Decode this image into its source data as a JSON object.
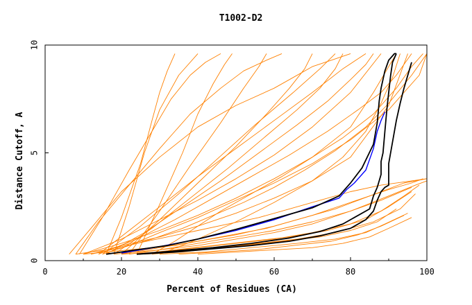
{
  "chart_data": {
    "type": "line",
    "title": "T1002-D2",
    "xlabel": "Percent of Residues (CA)",
    "ylabel": "Distance Cutoff, A",
    "xlim": [
      0,
      100
    ],
    "ylim": [
      0,
      10
    ],
    "xticks": [
      0,
      20,
      40,
      60,
      80,
      100
    ],
    "yticks": [
      0,
      5,
      10
    ],
    "clip_top": 9.6,
    "colors": {
      "models": "#ff8000",
      "highlight": "#0000ff",
      "reference": "#000000"
    },
    "series": [
      {
        "name": "model-01",
        "color": "#ff8000",
        "x": [
          6.3,
          12,
          20,
          30,
          40,
          50,
          60,
          65,
          70,
          75,
          80
        ],
        "y": [
          0.3,
          1.5,
          3.2,
          4.8,
          6.2,
          7.2,
          8.0,
          8.5,
          9.0,
          9.3,
          9.6
        ]
      },
      {
        "name": "model-02",
        "color": "#ff8000",
        "x": [
          8,
          14,
          22,
          30,
          38,
          46,
          52,
          58,
          62
        ],
        "y": [
          0.3,
          1.8,
          3.5,
          5.2,
          6.8,
          8.0,
          8.8,
          9.3,
          9.6
        ]
      },
      {
        "name": "model-03",
        "color": "#ff8000",
        "x": [
          9,
          15,
          22,
          28,
          33,
          38,
          42,
          46
        ],
        "y": [
          0.3,
          2.0,
          4.2,
          6.0,
          7.5,
          8.6,
          9.2,
          9.6
        ]
      },
      {
        "name": "model-04",
        "color": "#ff8000",
        "x": [
          10,
          20,
          30,
          40,
          50,
          60,
          70,
          80,
          88
        ],
        "y": [
          0.3,
          1.0,
          1.9,
          2.8,
          3.8,
          4.9,
          6.2,
          7.8,
          9.6
        ]
      },
      {
        "name": "model-05",
        "color": "#ff8000",
        "x": [
          10,
          20,
          30,
          40,
          50,
          60,
          70,
          80,
          86,
          92
        ],
        "y": [
          0.3,
          0.8,
          1.4,
          2.1,
          2.9,
          3.8,
          4.8,
          6.2,
          7.8,
          9.6
        ]
      },
      {
        "name": "model-06",
        "color": "#ff8000",
        "x": [
          12,
          20,
          30,
          40,
          50,
          60,
          70,
          80,
          90,
          95
        ],
        "y": [
          0.3,
          0.7,
          1.1,
          1.6,
          2.2,
          2.9,
          3.7,
          4.8,
          7.2,
          9.6
        ]
      },
      {
        "name": "model-07",
        "color": "#ff8000",
        "x": [
          14,
          22,
          30,
          40,
          50,
          60,
          70,
          78,
          84
        ],
        "y": [
          0.3,
          1.4,
          2.5,
          3.9,
          5.2,
          6.5,
          7.8,
          8.9,
          9.6
        ]
      },
      {
        "name": "model-08",
        "color": "#ff8000",
        "x": [
          15,
          25,
          35,
          45,
          55,
          65,
          72,
          76
        ],
        "y": [
          0.3,
          1.6,
          3.1,
          4.7,
          6.3,
          7.8,
          8.9,
          9.6
        ]
      },
      {
        "name": "model-09",
        "color": "#ff8000",
        "x": [
          16,
          20,
          25,
          28,
          30,
          32,
          34
        ],
        "y": [
          0.3,
          2.0,
          4.5,
          6.5,
          7.8,
          8.8,
          9.6
        ]
      },
      {
        "name": "model-10",
        "color": "#ff8000",
        "x": [
          18,
          22,
          26,
          30,
          35,
          40
        ],
        "y": [
          0.3,
          2.5,
          5.0,
          7.0,
          8.6,
          9.6
        ]
      },
      {
        "name": "model-11",
        "color": "#ff8000",
        "x": [
          20,
          30,
          40,
          50,
          60,
          70,
          80,
          90,
          96,
          99
        ],
        "y": [
          0.3,
          0.6,
          0.9,
          1.2,
          1.6,
          2.1,
          2.7,
          3.3,
          3.6,
          3.8
        ]
      },
      {
        "name": "model-12",
        "color": "#ff8000",
        "x": [
          18,
          30,
          40,
          50,
          60,
          70,
          80,
          90,
          97,
          100
        ],
        "y": [
          0.3,
          0.5,
          0.7,
          1.0,
          1.3,
          1.7,
          2.3,
          3.0,
          3.5,
          3.7
        ]
      },
      {
        "name": "model-13",
        "color": "#ff8000",
        "x": [
          22,
          30,
          40,
          50,
          60,
          70,
          80,
          88,
          96
        ],
        "y": [
          0.3,
          0.5,
          0.8,
          1.1,
          1.4,
          1.8,
          2.3,
          2.8,
          3.4
        ]
      },
      {
        "name": "model-14",
        "color": "#ff8000",
        "x": [
          20,
          30,
          40,
          50,
          60,
          70,
          80,
          88,
          94,
          98
        ],
        "y": [
          0.3,
          0.4,
          0.6,
          0.8,
          1.0,
          1.3,
          1.7,
          2.3,
          3.0,
          3.5
        ]
      },
      {
        "name": "model-15",
        "color": "#ff8000",
        "x": [
          24,
          34,
          44,
          54,
          64,
          74,
          84,
          90,
          96
        ],
        "y": [
          0.3,
          0.5,
          0.7,
          0.9,
          1.1,
          1.4,
          1.9,
          2.5,
          3.2
        ]
      },
      {
        "name": "model-16",
        "color": "#ff8000",
        "x": [
          26,
          36,
          46,
          56,
          66,
          76,
          86,
          93,
          97
        ],
        "y": [
          0.3,
          0.4,
          0.6,
          0.8,
          1.0,
          1.3,
          1.8,
          2.4,
          3.1
        ]
      },
      {
        "name": "model-17",
        "color": "#ff8000",
        "x": [
          28,
          40,
          52,
          62,
          72,
          80,
          87,
          92
        ],
        "y": [
          0.3,
          0.5,
          0.7,
          0.9,
          1.1,
          1.4,
          1.8,
          2.4
        ]
      },
      {
        "name": "model-18",
        "color": "#ff8000",
        "x": [
          30,
          42,
          54,
          66,
          76,
          84,
          89,
          95
        ],
        "y": [
          0.3,
          0.4,
          0.6,
          0.8,
          1.0,
          1.3,
          1.7,
          2.2
        ]
      },
      {
        "name": "model-19",
        "color": "#ff8000",
        "x": [
          35,
          45,
          55,
          65,
          75,
          82,
          88,
          94
        ],
        "y": [
          0.3,
          0.4,
          0.5,
          0.7,
          0.9,
          1.2,
          1.6,
          2.1
        ]
      },
      {
        "name": "model-20",
        "color": "#ff8000",
        "x": [
          40,
          50,
          60,
          70,
          78,
          85,
          90,
          96
        ],
        "y": [
          0.3,
          0.4,
          0.5,
          0.6,
          0.8,
          1.1,
          1.5,
          2.0
        ]
      },
      {
        "name": "model-21",
        "color": "#ff8000",
        "x": [
          15,
          22,
          30,
          40,
          50,
          60,
          70,
          80,
          90,
          98,
          100
        ],
        "y": [
          0.3,
          0.7,
          1.3,
          2.0,
          2.8,
          3.6,
          4.5,
          5.6,
          7.0,
          8.6,
          9.6
        ]
      },
      {
        "name": "model-22",
        "color": "#ff8000",
        "x": [
          12,
          20,
          28,
          36,
          44,
          52,
          60,
          68,
          76,
          84,
          90,
          96,
          100
        ],
        "y": [
          0.3,
          0.6,
          1.0,
          1.5,
          2.1,
          2.7,
          3.4,
          4.2,
          5.1,
          6.2,
          7.3,
          8.6,
          9.6
        ]
      },
      {
        "name": "model-23",
        "color": "#ff8000",
        "x": [
          14,
          24,
          34,
          44,
          54,
          64,
          74,
          82,
          88,
          92,
          96
        ],
        "y": [
          0.3,
          1.0,
          1.9,
          2.9,
          3.9,
          4.9,
          6.0,
          7.0,
          7.8,
          8.6,
          9.6
        ]
      },
      {
        "name": "model-24",
        "color": "#ff8000",
        "x": [
          16,
          26,
          36,
          46,
          56,
          66,
          74,
          80,
          84,
          86
        ],
        "y": [
          0.3,
          1.3,
          2.5,
          3.7,
          5.0,
          6.3,
          7.4,
          8.4,
          9.1,
          9.6
        ]
      },
      {
        "name": "model-25",
        "color": "#ff8000",
        "x": [
          18,
          28,
          38,
          48,
          58,
          66,
          72,
          76,
          78
        ],
        "y": [
          0.3,
          1.5,
          2.9,
          4.3,
          5.8,
          7.0,
          8.0,
          8.9,
          9.6
        ]
      },
      {
        "name": "model-26",
        "color": "#ff8000",
        "x": [
          20,
          30,
          40,
          50,
          58,
          64,
          68,
          70
        ],
        "y": [
          0.3,
          1.9,
          3.6,
          5.3,
          6.8,
          8.0,
          8.9,
          9.6
        ]
      },
      {
        "name": "model-27",
        "color": "#ff8000",
        "x": [
          22,
          30,
          38,
          46,
          52,
          56,
          58
        ],
        "y": [
          0.3,
          2.3,
          4.4,
          6.4,
          8.0,
          9.0,
          9.6
        ]
      },
      {
        "name": "model-28",
        "color": "#ff8000",
        "x": [
          24,
          30,
          36,
          40,
          44,
          47,
          49
        ],
        "y": [
          0.3,
          2.6,
          5.0,
          6.8,
          8.2,
          9.1,
          9.6
        ]
      },
      {
        "name": "model-29",
        "color": "#ff8000",
        "x": [
          28,
          34,
          40,
          46,
          54,
          62,
          70,
          78,
          86,
          92,
          96,
          99
        ],
        "y": [
          0.3,
          0.9,
          1.6,
          2.3,
          3.1,
          3.9,
          4.8,
          5.7,
          6.8,
          8.0,
          9.0,
          9.6
        ]
      },
      {
        "name": "model-30",
        "color": "#ff8000",
        "x": [
          30,
          40,
          50,
          60,
          70,
          78,
          84,
          88,
          91,
          93
        ],
        "y": [
          0.3,
          1.0,
          1.8,
          2.7,
          3.7,
          4.8,
          6.0,
          7.3,
          8.5,
          9.6
        ]
      },
      {
        "name": "model-31",
        "color": "#ff8000",
        "x": [
          10,
          16,
          22,
          28,
          34,
          40,
          46,
          52,
          58,
          64,
          70,
          76,
          82,
          88,
          94,
          100
        ],
        "y": [
          0.3,
          0.4,
          0.5,
          0.6,
          0.7,
          0.9,
          1.1,
          1.3,
          1.5,
          1.8,
          2.1,
          2.4,
          2.8,
          3.2,
          3.6,
          3.8
        ]
      },
      {
        "name": "model-32",
        "color": "#ff8000",
        "x": [
          8,
          16,
          24,
          32,
          40,
          48,
          56,
          64,
          72,
          80,
          88,
          96,
          100
        ],
        "y": [
          0.3,
          0.5,
          0.8,
          1.1,
          1.4,
          1.7,
          2.0,
          2.4,
          2.8,
          3.2,
          3.5,
          3.7,
          3.8
        ]
      },
      {
        "name": "highlight",
        "color": "#0000ff",
        "width": 1.4,
        "x": [
          20,
          30,
          40,
          50,
          60,
          70,
          77,
          79,
          81,
          84,
          86,
          87,
          88,
          89
        ],
        "y": [
          0.35,
          0.65,
          1.0,
          1.4,
          1.9,
          2.5,
          2.9,
          3.3,
          3.6,
          4.2,
          5.2,
          6.0,
          6.5,
          6.9
        ]
      },
      {
        "name": "reference-1",
        "color": "#000000",
        "width": 1.8,
        "x": [
          16,
          24,
          32,
          40,
          50,
          60,
          70,
          77,
          80,
          83,
          86,
          87,
          87.5,
          88,
          89,
          90,
          91,
          91.5,
          92
        ],
        "y": [
          0.3,
          0.5,
          0.7,
          1.0,
          1.45,
          1.95,
          2.45,
          3.0,
          3.6,
          4.3,
          5.4,
          6.4,
          7.4,
          8.0,
          8.8,
          9.3,
          9.5,
          9.6,
          9.6
        ]
      },
      {
        "name": "reference-2",
        "color": "#000000",
        "width": 1.8,
        "x": [
          24,
          34,
          44,
          54,
          64,
          72,
          78,
          82,
          85,
          86,
          87,
          87.5,
          88,
          88,
          88.5,
          89,
          89.5,
          90,
          90.5,
          91,
          92
        ],
        "y": [
          0.3,
          0.45,
          0.6,
          0.8,
          1.05,
          1.35,
          1.7,
          2.1,
          2.4,
          3.0,
          3.4,
          3.7,
          4.0,
          4.6,
          5.0,
          6.0,
          7.0,
          7.8,
          8.6,
          9.2,
          9.6
        ]
      },
      {
        "name": "reference-3",
        "color": "#000000",
        "width": 1.8,
        "x": [
          24,
          34,
          44,
          54,
          64,
          72,
          80,
          84,
          86,
          87,
          88,
          89,
          90,
          90,
          91,
          92,
          93,
          94,
          95,
          96
        ],
        "y": [
          0.3,
          0.4,
          0.55,
          0.7,
          0.9,
          1.15,
          1.5,
          1.9,
          2.3,
          2.8,
          3.2,
          3.4,
          3.5,
          4.5,
          5.5,
          6.5,
          7.3,
          8.0,
          8.6,
          9.2
        ]
      }
    ]
  }
}
